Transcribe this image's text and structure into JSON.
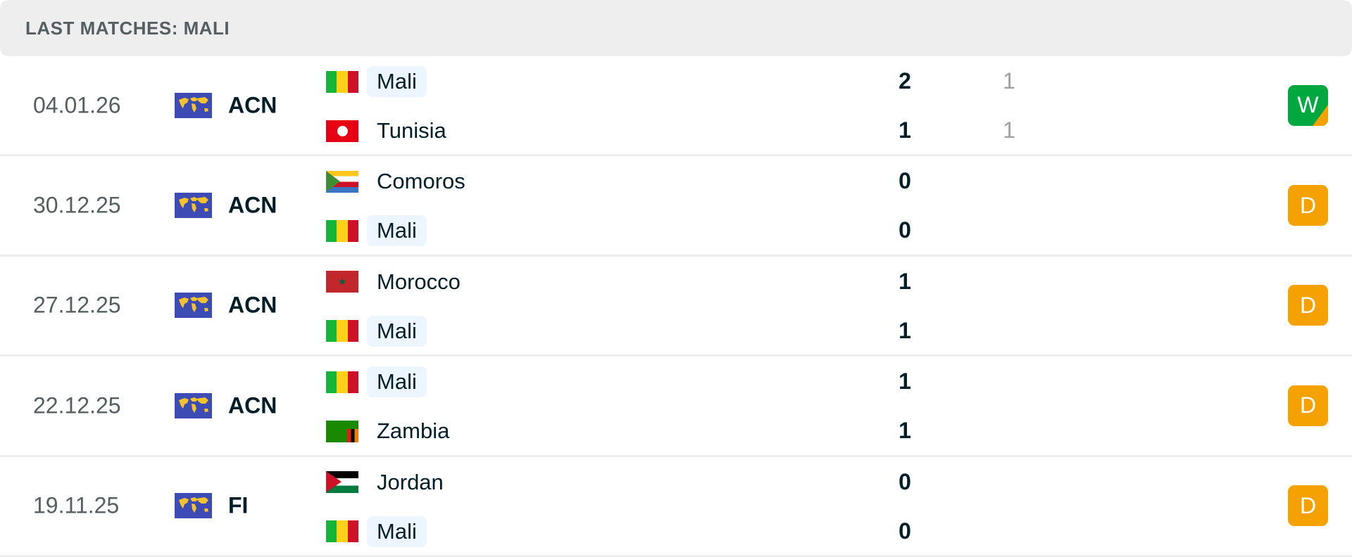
{
  "header": {
    "title": "LAST MATCHES: MALI"
  },
  "colors": {
    "win": "#00a83f",
    "draw": "#f5a200",
    "highlight": "#edf5fe"
  },
  "matches": [
    {
      "date": "04.01.26",
      "competition": "ACN",
      "home": {
        "name": "Mali",
        "flag": "mali",
        "highlight": true
      },
      "away": {
        "name": "Tunisia",
        "flag": "tunisia",
        "highlight": false
      },
      "score_home": "2",
      "score_away": "1",
      "pen_home": "1",
      "pen_away": "1",
      "result": "W",
      "result_type": "win-penalties"
    },
    {
      "date": "30.12.25",
      "competition": "ACN",
      "home": {
        "name": "Comoros",
        "flag": "comoros",
        "highlight": false
      },
      "away": {
        "name": "Mali",
        "flag": "mali",
        "highlight": true
      },
      "score_home": "0",
      "score_away": "0",
      "result": "D",
      "result_type": "draw"
    },
    {
      "date": "27.12.25",
      "competition": "ACN",
      "home": {
        "name": "Morocco",
        "flag": "morocco",
        "highlight": false
      },
      "away": {
        "name": "Mali",
        "flag": "mali",
        "highlight": true
      },
      "score_home": "1",
      "score_away": "1",
      "result": "D",
      "result_type": "draw"
    },
    {
      "date": "22.12.25",
      "competition": "ACN",
      "home": {
        "name": "Mali",
        "flag": "mali",
        "highlight": true
      },
      "away": {
        "name": "Zambia",
        "flag": "zambia",
        "highlight": false
      },
      "score_home": "1",
      "score_away": "1",
      "result": "D",
      "result_type": "draw"
    },
    {
      "date": "19.11.25",
      "competition": "FI",
      "home": {
        "name": "Jordan",
        "flag": "jordan",
        "highlight": false
      },
      "away": {
        "name": "Mali",
        "flag": "mali",
        "highlight": true
      },
      "score_home": "0",
      "score_away": "0",
      "result": "D",
      "result_type": "draw"
    }
  ]
}
